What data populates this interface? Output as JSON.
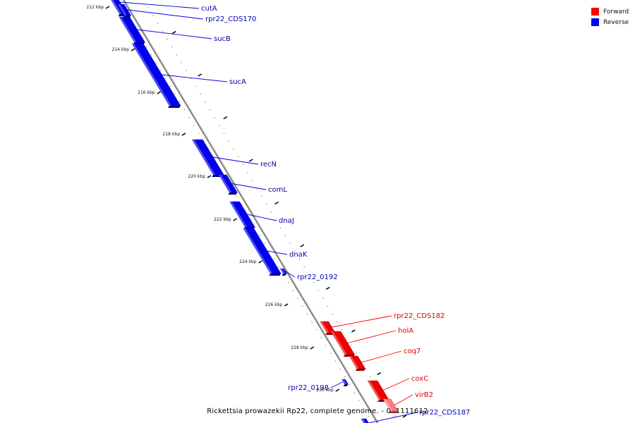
{
  "title": "Rickettsia prowazekii Rp22, complete genome. - 0..1111612",
  "legend": [
    {
      "label": "Forward",
      "color": "#ff0000"
    },
    {
      "label": "Reverse",
      "color": "#0000ff"
    }
  ],
  "ticks": [
    "212 kbp",
    "214 kbp",
    "216 kbp",
    "218 kbp",
    "220 kbp",
    "222 kbp",
    "224 kbp",
    "226 kbp",
    "228 kbp",
    "230 kbp"
  ],
  "features": [
    {
      "name": "cutA",
      "strand": "reverse"
    },
    {
      "name": "rpr22_CDS170",
      "strand": "reverse"
    },
    {
      "name": "sucB",
      "strand": "reverse"
    },
    {
      "name": "sucA",
      "strand": "reverse"
    },
    {
      "name": "recN",
      "strand": "reverse"
    },
    {
      "name": "comL",
      "strand": "reverse"
    },
    {
      "name": "dnaJ",
      "strand": "reverse"
    },
    {
      "name": "dnaK",
      "strand": "reverse"
    },
    {
      "name": "rpr22_0192",
      "strand": "reverse"
    },
    {
      "name": "rpr22_CDS182",
      "strand": "forward"
    },
    {
      "name": "holA",
      "strand": "forward"
    },
    {
      "name": "coq7",
      "strand": "forward"
    },
    {
      "name": "coxC",
      "strand": "forward"
    },
    {
      "name": "virB2",
      "strand": "forward"
    },
    {
      "name": "rpr22_0198",
      "strand": "reverse"
    },
    {
      "name": "rpr22_CDS187",
      "strand": "reverse"
    }
  ]
}
